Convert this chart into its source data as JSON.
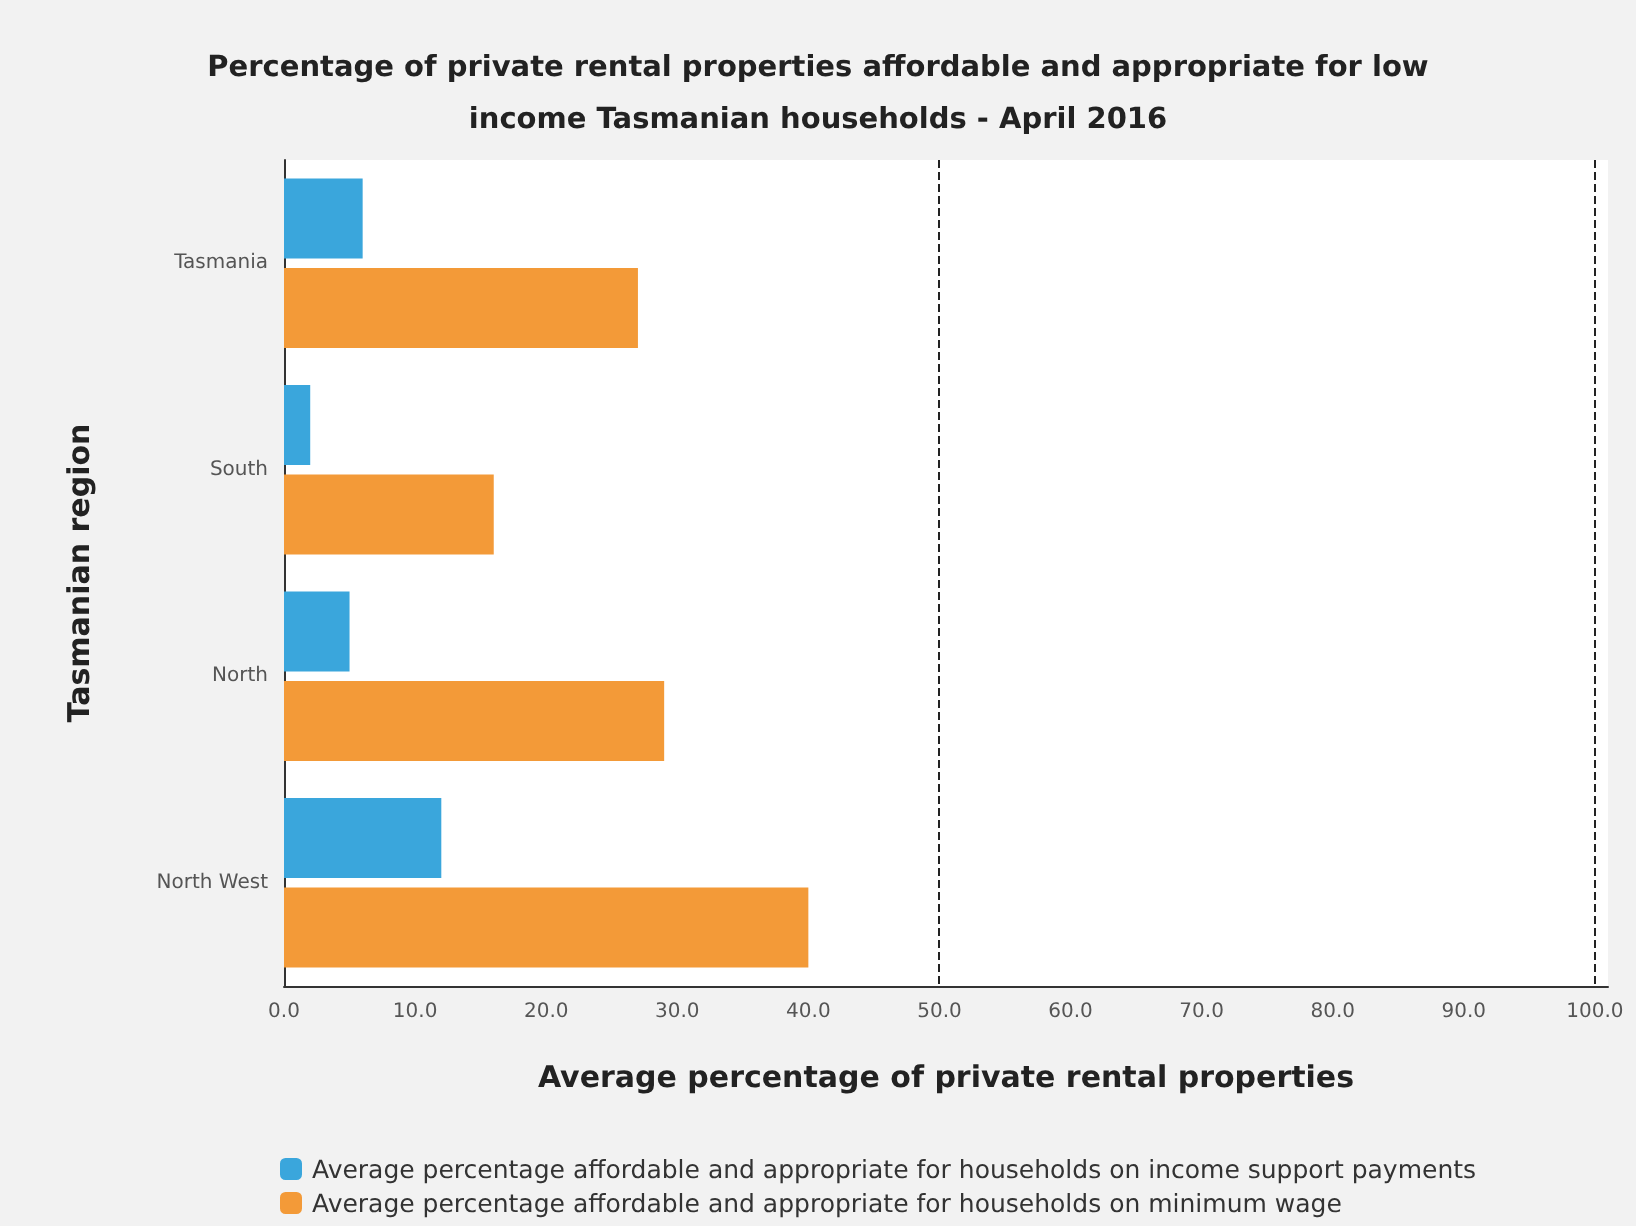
{
  "chart_data": {
    "type": "bar",
    "orientation": "horizontal",
    "title": "Percentage of private rental properties affordable and appropriate for low\nincome Tasmanian households - April 2016",
    "xlabel": "Average percentage of private rental properties",
    "ylabel": "Tasmanian region",
    "categories": [
      "Tasmania",
      "South",
      "North",
      "North West"
    ],
    "series": [
      {
        "name": "Average percentage affordable and appropriate for households on income support payments",
        "color": "#3aa6dc",
        "values": [
          6,
          2,
          5,
          12
        ]
      },
      {
        "name": "Average percentage affordable and appropriate for households on minimum wage",
        "color": "#f39a38",
        "values": [
          27,
          16,
          29,
          40
        ]
      }
    ],
    "xlim": [
      0,
      101
    ],
    "xticks": [
      {
        "value": 0,
        "label": "0.0"
      },
      {
        "value": 10,
        "label": "10.0"
      },
      {
        "value": 20,
        "label": "20.0"
      },
      {
        "value": 30,
        "label": "30.0"
      },
      {
        "value": 40,
        "label": "40.0"
      },
      {
        "value": 50,
        "label": "50.0"
      },
      {
        "value": 60,
        "label": "60.0"
      },
      {
        "value": 70,
        "label": "70.0"
      },
      {
        "value": 80,
        "label": "80.0"
      },
      {
        "value": 90,
        "label": "90.0"
      },
      {
        "value": 100,
        "label": "100.0"
      }
    ],
    "ref_lines": [
      {
        "axis": "x",
        "value": 50,
        "color": "#222222",
        "line_style": "dashed"
      },
      {
        "axis": "x",
        "value": 100,
        "color": "#222222",
        "line_style": "dashed"
      }
    ],
    "grid": false,
    "legend": "bottom left"
  }
}
